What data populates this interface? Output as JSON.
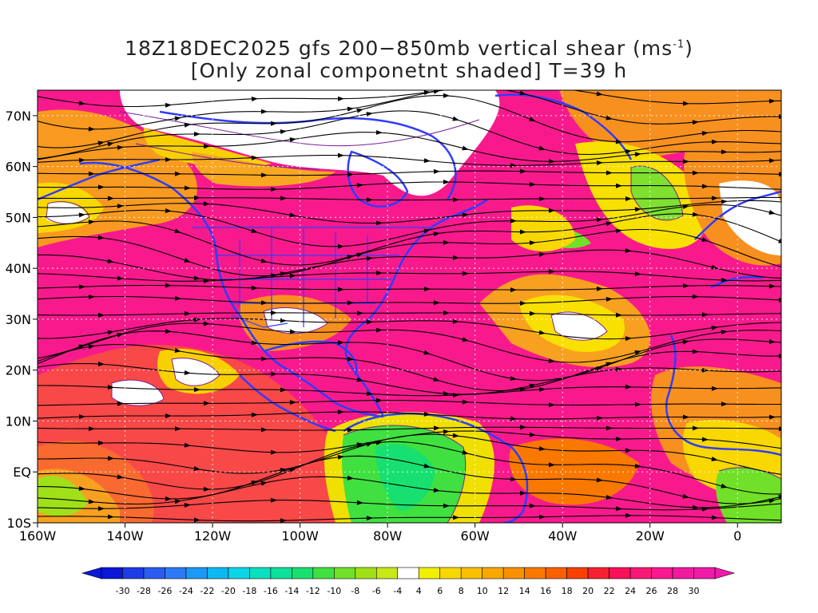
{
  "title": {
    "line1_pre": "18Z18DEC2025 gfs 200−850mb vertical shear (ms",
    "line1_sup": "-1",
    "line1_post": ")",
    "line2": "[Only zonal componetnt shaded] T=39 h"
  },
  "map": {
    "lon_range": [
      -160,
      10
    ],
    "lat_range": [
      -10,
      75
    ],
    "x_ticks": [
      {
        "lon": -160,
        "label": "160W"
      },
      {
        "lon": -140,
        "label": "140W"
      },
      {
        "lon": -120,
        "label": "120W"
      },
      {
        "lon": -100,
        "label": "100W"
      },
      {
        "lon": -80,
        "label": "80W"
      },
      {
        "lon": -60,
        "label": "60W"
      },
      {
        "lon": -40,
        "label": "40W"
      },
      {
        "lon": -20,
        "label": "20W"
      },
      {
        "lon": 0,
        "label": "0"
      }
    ],
    "y_ticks": [
      {
        "lat": 70,
        "label": "70N"
      },
      {
        "lat": 60,
        "label": "60N"
      },
      {
        "lat": 50,
        "label": "50N"
      },
      {
        "lat": 40,
        "label": "40N"
      },
      {
        "lat": 30,
        "label": "30N"
      },
      {
        "lat": 20,
        "label": "20N"
      },
      {
        "lat": 10,
        "label": "10N"
      },
      {
        "lat": 0,
        "label": "EQ"
      },
      {
        "lat": -10,
        "label": "10S"
      }
    ],
    "coastline_color": "#2f3cff",
    "contour_color": "#7a1f9a",
    "streamline_color": "#000000"
  },
  "colorbar": {
    "labels": [
      "-30",
      "-28",
      "-26",
      "-24",
      "-22",
      "-20",
      "-18",
      "-16",
      "-14",
      "-12",
      "-10",
      "-8",
      "-6",
      "-4",
      "4",
      "6",
      "8",
      "10",
      "12",
      "14",
      "16",
      "18",
      "20",
      "22",
      "24",
      "26",
      "28",
      "30"
    ],
    "colors": [
      "#0a18d8",
      "#1d3ce6",
      "#2a5cf0",
      "#2e7af5",
      "#1c98f5",
      "#0cb8f0",
      "#0ad6e8",
      "#0ae0c0",
      "#0ce09a",
      "#18e070",
      "#40e040",
      "#70e028",
      "#a0e018",
      "#c8e818",
      "#ffffff",
      "#f0f000",
      "#f8d800",
      "#f8c000",
      "#f8a800",
      "#f89000",
      "#f87800",
      "#f86000",
      "#f84000",
      "#f82030",
      "#f81058",
      "#f81878",
      "#f81890",
      "#f01aa0",
      "#f01aa8"
    ],
    "left_arrow_color": "#0a18d8",
    "right_arrow_color": "#f01aa8"
  }
}
